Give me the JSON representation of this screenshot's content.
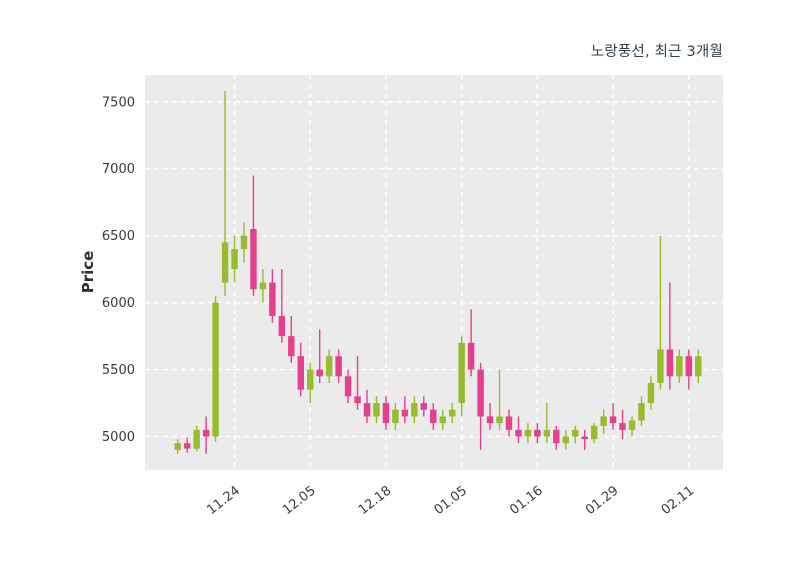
{
  "header": {
    "title": "노랑풍선, 최근 3개월"
  },
  "chart_data": {
    "type": "candlestick",
    "title": "노랑풍선, 최근 3개월",
    "xlabel": "",
    "ylabel": "Price",
    "ylim": [
      4750,
      7700
    ],
    "y_ticks": [
      5000,
      5500,
      6000,
      6500,
      7000,
      7500
    ],
    "x_tick_indices": [
      6,
      14,
      22,
      30,
      38,
      46,
      54
    ],
    "x_tick_labels": [
      "11.24",
      "12.05",
      "12.18",
      "01.05",
      "01.16",
      "01.29",
      "02.11"
    ],
    "grid": "dashed-white-on-gray",
    "legend": "none",
    "colors": {
      "up": "#97bc2c",
      "down": "#e5408d",
      "plot_bg": "#ebebeb",
      "grid": "#ffffff",
      "tick_text": "#3a3a3a",
      "title_text": "#31404e"
    },
    "candles_format": [
      "open",
      "high",
      "low",
      "close"
    ],
    "candles": [
      [
        4900,
        4980,
        4870,
        4950
      ],
      [
        4950,
        4990,
        4880,
        4910
      ],
      [
        4910,
        5080,
        4890,
        5050
      ],
      [
        5050,
        5150,
        4870,
        5000
      ],
      [
        5000,
        6050,
        4960,
        6000
      ],
      [
        6150,
        7580,
        6050,
        6450
      ],
      [
        6250,
        6500,
        6150,
        6400
      ],
      [
        6400,
        6600,
        6300,
        6500
      ],
      [
        6550,
        6950,
        6050,
        6100
      ],
      [
        6100,
        6250,
        6000,
        6150
      ],
      [
        6150,
        6250,
        5850,
        5900
      ],
      [
        5900,
        6250,
        5700,
        5750
      ],
      [
        5750,
        5900,
        5550,
        5600
      ],
      [
        5600,
        5700,
        5300,
        5350
      ],
      [
        5350,
        5550,
        5250,
        5500
      ],
      [
        5500,
        5800,
        5400,
        5450
      ],
      [
        5450,
        5650,
        5400,
        5600
      ],
      [
        5600,
        5650,
        5400,
        5450
      ],
      [
        5450,
        5500,
        5250,
        5300
      ],
      [
        5300,
        5600,
        5200,
        5250
      ],
      [
        5250,
        5350,
        5100,
        5150
      ],
      [
        5150,
        5300,
        5100,
        5250
      ],
      [
        5250,
        5300,
        5050,
        5100
      ],
      [
        5100,
        5250,
        5050,
        5200
      ],
      [
        5200,
        5300,
        5100,
        5150
      ],
      [
        5150,
        5300,
        5100,
        5250
      ],
      [
        5250,
        5300,
        5150,
        5200
      ],
      [
        5200,
        5250,
        5050,
        5100
      ],
      [
        5100,
        5200,
        5050,
        5150
      ],
      [
        5150,
        5250,
        5100,
        5200
      ],
      [
        5250,
        5750,
        5150,
        5700
      ],
      [
        5700,
        5950,
        5450,
        5500
      ],
      [
        5500,
        5550,
        4900,
        5150
      ],
      [
        5150,
        5250,
        5050,
        5100
      ],
      [
        5100,
        5500,
        5050,
        5150
      ],
      [
        5150,
        5200,
        5000,
        5050
      ],
      [
        5050,
        5150,
        4950,
        5000
      ],
      [
        5000,
        5100,
        4950,
        5050
      ],
      [
        5050,
        5100,
        4950,
        5000
      ],
      [
        5000,
        5250,
        4950,
        5050
      ],
      [
        5050,
        5080,
        4900,
        4950
      ],
      [
        4950,
        5050,
        4900,
        5000
      ],
      [
        5000,
        5080,
        4950,
        5050
      ],
      [
        5000,
        5050,
        4900,
        4980
      ],
      [
        4980,
        5100,
        4950,
        5080
      ],
      [
        5080,
        5200,
        5020,
        5150
      ],
      [
        5150,
        5250,
        5050,
        5100
      ],
      [
        5100,
        5200,
        4980,
        5050
      ],
      [
        5050,
        5150,
        5000,
        5120
      ],
      [
        5120,
        5300,
        5080,
        5250
      ],
      [
        5250,
        5450,
        5200,
        5400
      ],
      [
        5400,
        6500,
        5350,
        5650
      ],
      [
        5650,
        6150,
        5350,
        5450
      ],
      [
        5450,
        5650,
        5400,
        5600
      ],
      [
        5600,
        5650,
        5350,
        5450
      ],
      [
        5450,
        5650,
        5400,
        5600
      ]
    ]
  }
}
